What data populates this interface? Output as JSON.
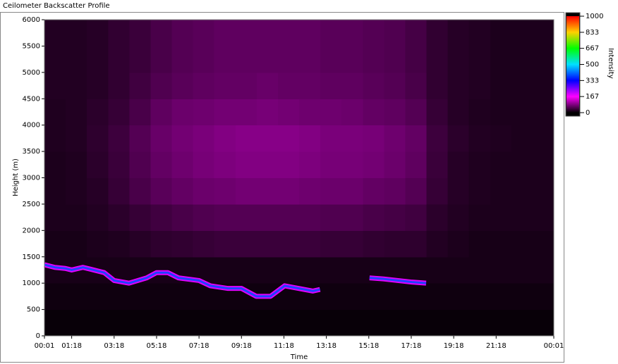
{
  "window_title": "Ceilometer Backscatter Profile",
  "chart_data": {
    "type": "heatmap",
    "xlabel": "Time",
    "ylabel": "Height (m)",
    "colorbar_label": "Intensity",
    "xlim": [
      1,
      1441
    ],
    "ylim": [
      0,
      6000
    ],
    "xticks": [
      {
        "value": 1,
        "label": "00:01"
      },
      {
        "value": 78,
        "label": "01:18"
      },
      {
        "value": 198,
        "label": "03:18"
      },
      {
        "value": 318,
        "label": "05:18"
      },
      {
        "value": 438,
        "label": "07:18"
      },
      {
        "value": 558,
        "label": "09:18"
      },
      {
        "value": 678,
        "label": "11:18"
      },
      {
        "value": 798,
        "label": "13:18"
      },
      {
        "value": 918,
        "label": "15:18"
      },
      {
        "value": 1038,
        "label": "17:18"
      },
      {
        "value": 1158,
        "label": "19:18"
      },
      {
        "value": 1278,
        "label": "21:18"
      },
      {
        "value": 1441,
        "label": "00:01"
      }
    ],
    "yticks": [
      0,
      500,
      1000,
      1500,
      2000,
      2500,
      3000,
      3500,
      4000,
      4500,
      5000,
      5500,
      6000
    ],
    "xbins": [
      1,
      61,
      121,
      181,
      241,
      301,
      361,
      421,
      481,
      541,
      601,
      661,
      721,
      781,
      841,
      901,
      961,
      1021,
      1081,
      1141,
      1201,
      1261,
      1321,
      1381,
      1441
    ],
    "ybins": [
      0,
      500,
      1000,
      1500,
      2000,
      2500,
      3000,
      3500,
      4000,
      4500,
      5000,
      5500,
      6000
    ],
    "z": [
      [
        5,
        5,
        5,
        5,
        5,
        5,
        5,
        5,
        5,
        5,
        5,
        5,
        5,
        5,
        5,
        5,
        5,
        5,
        5,
        5,
        5,
        5,
        5,
        5
      ],
      [
        10,
        10,
        10,
        10,
        10,
        10,
        10,
        10,
        10,
        10,
        10,
        10,
        10,
        10,
        10,
        10,
        10,
        10,
        10,
        10,
        10,
        10,
        10,
        10
      ],
      [
        15,
        15,
        15,
        15,
        15,
        15,
        15,
        15,
        15,
        15,
        15,
        15,
        15,
        15,
        15,
        15,
        15,
        15,
        15,
        15,
        15,
        15,
        15,
        15
      ],
      [
        15,
        15,
        18,
        20,
        25,
        30,
        32,
        35,
        38,
        38,
        38,
        38,
        38,
        35,
        35,
        32,
        30,
        30,
        22,
        18,
        15,
        15,
        15,
        15
      ],
      [
        18,
        18,
        22,
        28,
        35,
        42,
        48,
        52,
        55,
        55,
        55,
        55,
        55,
        52,
        52,
        48,
        45,
        42,
        28,
        22,
        18,
        18,
        18,
        18
      ],
      [
        18,
        20,
        25,
        35,
        48,
        58,
        65,
        70,
        72,
        75,
        75,
        75,
        72,
        70,
        70,
        65,
        62,
        55,
        35,
        25,
        20,
        18,
        18,
        18
      ],
      [
        18,
        20,
        28,
        38,
        52,
        65,
        72,
        78,
        82,
        85,
        85,
        85,
        82,
        78,
        78,
        75,
        70,
        62,
        38,
        25,
        20,
        18,
        18,
        18
      ],
      [
        20,
        22,
        30,
        40,
        55,
        68,
        75,
        80,
        85,
        88,
        88,
        88,
        85,
        80,
        80,
        78,
        72,
        65,
        40,
        28,
        22,
        20,
        18,
        18
      ],
      [
        20,
        22,
        28,
        35,
        48,
        62,
        70,
        72,
        75,
        75,
        78,
        75,
        72,
        72,
        70,
        65,
        62,
        55,
        35,
        25,
        20,
        18,
        18,
        18
      ],
      [
        22,
        22,
        25,
        32,
        42,
        52,
        58,
        62,
        65,
        65,
        68,
        65,
        65,
        62,
        62,
        58,
        55,
        48,
        32,
        25,
        22,
        18,
        18,
        18
      ],
      [
        22,
        22,
        25,
        32,
        38,
        48,
        55,
        58,
        62,
        62,
        62,
        62,
        62,
        58,
        58,
        55,
        52,
        45,
        32,
        25,
        22,
        18,
        18,
        18
      ],
      [
        22,
        22,
        25,
        32,
        38,
        48,
        55,
        58,
        62,
        62,
        62,
        62,
        62,
        58,
        58,
        55,
        52,
        45,
        32,
        25,
        22,
        18,
        18,
        18
      ]
    ],
    "cloud_base": {
      "x": [
        1,
        30,
        60,
        78,
        110,
        140,
        170,
        198,
        240,
        290,
        318,
        350,
        380,
        438,
        470,
        520,
        558,
        600,
        640,
        680,
        720,
        760,
        780,
        850,
        920,
        960,
        1000,
        1040,
        1080
      ],
      "y": [
        1350,
        1300,
        1280,
        1250,
        1300,
        1250,
        1200,
        1050,
        1000,
        1100,
        1200,
        1200,
        1100,
        1050,
        950,
        900,
        900,
        750,
        750,
        950,
        900,
        850,
        880,
        null,
        1100,
        1080,
        1050,
        1020,
        1000
      ]
    },
    "colorscale": [
      "#000000",
      "#ff00ff",
      "#0000ff",
      "#00e0ff",
      "#00ff00",
      "#ffd000",
      "#ff0000"
    ],
    "zlim": [
      0,
      1000
    ],
    "zticks": [
      0,
      167,
      333,
      500,
      667,
      833,
      1000
    ]
  }
}
